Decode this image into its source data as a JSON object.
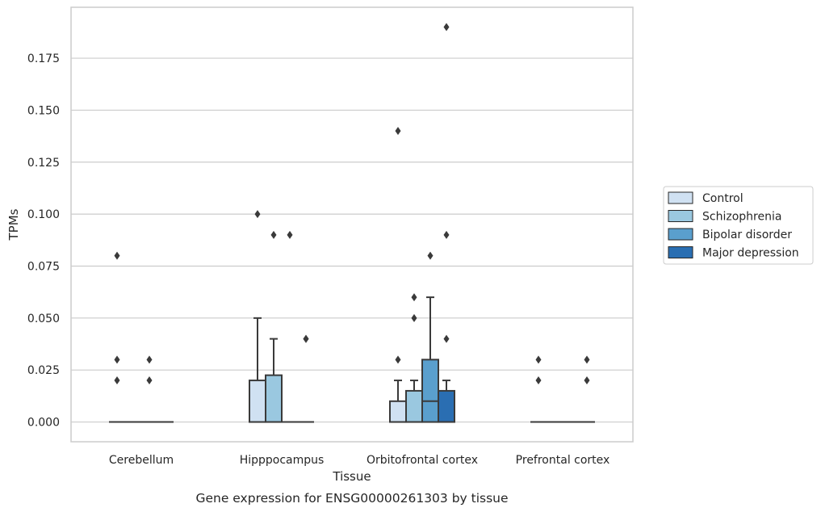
{
  "caption": "Gene expression for ENSG00000261303 by tissue",
  "chart_data": {
    "type": "box",
    "xlabel": "Tissue",
    "ylabel": "TPMs",
    "ylim": [
      -0.0095,
      0.1995
    ],
    "yticks": [
      0.0,
      0.025,
      0.05,
      0.075,
      0.1,
      0.125,
      0.15,
      0.175
    ],
    "ytick_labels": [
      "0.000",
      "0.025",
      "0.050",
      "0.075",
      "0.100",
      "0.125",
      "0.150",
      "0.175"
    ],
    "grid": true,
    "legend_position": "right",
    "categories": [
      "Cerebellum",
      "Hipppocampus",
      "Orbitofrontal cortex",
      "Prefrontal cortex"
    ],
    "series": [
      {
        "name": "Control",
        "color": "#d0e1f2",
        "boxes": [
          {
            "q1": 0,
            "median": 0,
            "q3": 0,
            "whislo": 0,
            "whishi": 0,
            "fliers": [
              0.08,
              0.03,
              0.02
            ]
          },
          {
            "q1": 0,
            "median": 0,
            "q3": 0.02,
            "whislo": 0,
            "whishi": 0.05,
            "fliers": [
              0.1
            ]
          },
          {
            "q1": 0,
            "median": 0,
            "q3": 0.01,
            "whislo": 0,
            "whishi": 0.02,
            "fliers": [
              0.14,
              0.03
            ]
          },
          {
            "q1": 0,
            "median": 0,
            "q3": 0,
            "whislo": 0,
            "whishi": 0,
            "fliers": [
              0.03,
              0.02
            ]
          }
        ]
      },
      {
        "name": "Schizophrenia",
        "color": "#9ac8e0",
        "boxes": [
          {
            "q1": 0,
            "median": 0,
            "q3": 0,
            "whislo": 0,
            "whishi": 0,
            "fliers": []
          },
          {
            "q1": 0,
            "median": 0,
            "q3": 0.0225,
            "whislo": 0,
            "whishi": 0.04,
            "fliers": [
              0.09
            ]
          },
          {
            "q1": 0,
            "median": 0,
            "q3": 0.015,
            "whislo": 0,
            "whishi": 0.02,
            "fliers": [
              0.06,
              0.05
            ]
          },
          {
            "q1": 0,
            "median": 0,
            "q3": 0,
            "whislo": 0,
            "whishi": 0,
            "fliers": []
          }
        ]
      },
      {
        "name": "Bipolar disorder",
        "color": "#5a9fcd",
        "boxes": [
          {
            "q1": 0,
            "median": 0,
            "q3": 0,
            "whislo": 0,
            "whishi": 0,
            "fliers": [
              0.03,
              0.02
            ]
          },
          {
            "q1": 0,
            "median": 0,
            "q3": 0,
            "whislo": 0,
            "whishi": 0,
            "fliers": [
              0.09
            ]
          },
          {
            "q1": 0,
            "median": 0.01,
            "q3": 0.03,
            "whislo": 0,
            "whishi": 0.06,
            "fliers": [
              0.08
            ]
          },
          {
            "q1": 0,
            "median": 0,
            "q3": 0,
            "whislo": 0,
            "whishi": 0,
            "fliers": []
          }
        ]
      },
      {
        "name": "Major depression",
        "color": "#2a6eb2",
        "boxes": [
          {
            "q1": 0,
            "median": 0,
            "q3": 0,
            "whislo": 0,
            "whishi": 0,
            "fliers": []
          },
          {
            "q1": 0,
            "median": 0,
            "q3": 0,
            "whislo": 0,
            "whishi": 0,
            "fliers": [
              0.04,
              0.04
            ]
          },
          {
            "q1": 0,
            "median": 0,
            "q3": 0.015,
            "whislo": 0,
            "whishi": 0.02,
            "fliers": [
              0.19,
              0.09,
              0.04
            ]
          },
          {
            "q1": 0,
            "median": 0,
            "q3": 0,
            "whislo": 0,
            "whishi": 0,
            "fliers": [
              0.03,
              0.02
            ]
          }
        ]
      }
    ]
  }
}
